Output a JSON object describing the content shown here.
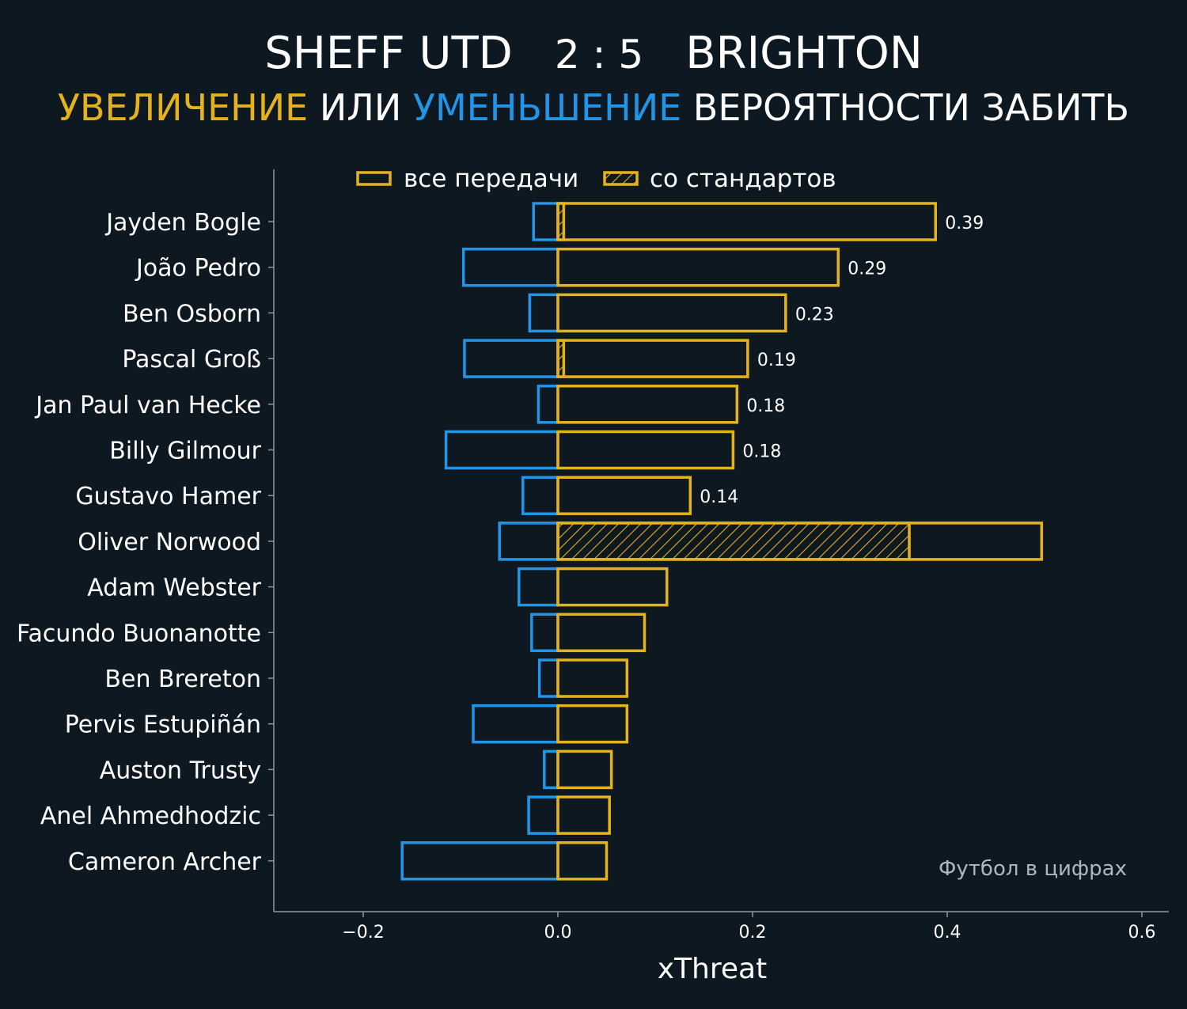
{
  "header": {
    "home_team": "SHEFF UTD",
    "score": "2 : 5",
    "away_team": "BRIGHTON",
    "subtitle_part1": "УВЕЛИЧЕНИЕ",
    "subtitle_part2": "ИЛИ",
    "subtitle_part3": "УМЕНЬШЕНИЕ",
    "subtitle_part4": "ВЕРОЯТНОСТИ ЗАБИТЬ"
  },
  "colors": {
    "background": "#0e1821",
    "positive": "#e3b21c",
    "negative": "#2196e8",
    "axis": "#8c979f",
    "text": "#ffffff",
    "watermark": "#aeb7bf"
  },
  "watermark": "Футбол в цифрах",
  "chart_data": {
    "type": "bar",
    "orientation": "horizontal",
    "xlabel": "xThreat",
    "xlim": [
      -0.29,
      0.625
    ],
    "xticks": [
      -0.2,
      0.0,
      0.2,
      0.4,
      0.6
    ],
    "xtick_labels": [
      "−0.2",
      "0.0",
      "0.2",
      "0.4",
      "0.6"
    ],
    "legend": {
      "position": "top-center",
      "entries": [
        "все передачи",
        "со стандартов"
      ]
    },
    "categories": [
      "Jayden Bogle",
      "João Pedro",
      "Ben Osborn",
      "Pascal Groß",
      "Jan Paul van Hecke",
      "Billy Gilmour",
      "Gustavo Hamer",
      "Oliver Norwood",
      "Adam Webster",
      "Facundo Buonanotte",
      "Ben Brereton",
      "Pervis Estupiñán",
      "Auston Trusty",
      "Anel Ahmedhodzic",
      "Cameron Archer"
    ],
    "series": [
      {
        "name": "все передачи",
        "positive": [
          0.388,
          0.288,
          0.234,
          0.195,
          0.184,
          0.18,
          0.136,
          0.497,
          0.112,
          0.089,
          0.071,
          0.071,
          0.055,
          0.053,
          0.05
        ],
        "negative": [
          -0.025,
          -0.097,
          -0.029,
          -0.096,
          -0.02,
          -0.115,
          -0.036,
          -0.06,
          -0.04,
          -0.027,
          -0.019,
          -0.087,
          -0.014,
          -0.03,
          -0.16
        ]
      },
      {
        "name": "со стандартов",
        "positive": [
          0.006,
          0.0,
          0.0,
          0.006,
          0.0,
          0.0,
          0.0,
          0.361,
          0.0,
          0.0,
          0.0,
          0.0,
          0.0,
          0.0,
          0.0
        ]
      }
    ],
    "data_labels": [
      "0.39",
      "0.29",
      "0.23",
      "0.19",
      "0.18",
      "0.18",
      "0.14",
      "",
      "",
      "",
      "",
      "",
      "",
      "",
      ""
    ]
  }
}
